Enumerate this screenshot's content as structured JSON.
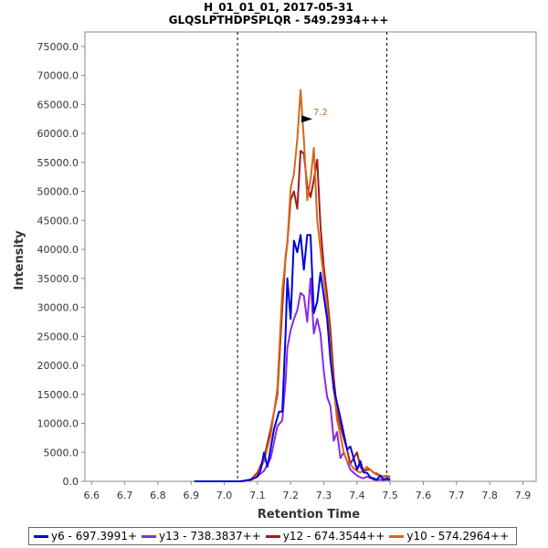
{
  "chart_data": {
    "type": "line",
    "title": "H_01_01_01, 2017-05-31",
    "subtitle": "GLQSLPTHDPSPLQR - 549.2934+++",
    "xlabel": "Retention Time",
    "ylabel": "Intensity",
    "xlim": [
      6.58,
      7.94
    ],
    "ylim": [
      0,
      77500
    ],
    "x_ticks": [
      "6.6",
      "6.7",
      "6.8",
      "6.9",
      "7.0",
      "7.1",
      "7.2",
      "7.3",
      "7.4",
      "7.5",
      "7.6",
      "7.7",
      "7.8",
      "7.9"
    ],
    "y_ticks": [
      "0.0",
      "5000.0",
      "10000.0",
      "15000.0",
      "20000.0",
      "25000.0",
      "30000.0",
      "35000.0",
      "40000.0",
      "45000.0",
      "50000.0",
      "55000.0",
      "60000.0",
      "65000.0",
      "70000.0",
      "75000.0"
    ],
    "integration_boundaries": [
      7.04,
      7.49
    ],
    "peak_annotation": {
      "label": "7.2",
      "x": 7.26,
      "y": 62500
    },
    "legend_position": "bottom",
    "series": [
      {
        "name": "y6 - 697.3991+",
        "color": "#0000e0",
        "x": [
          6.91,
          6.95,
          7.0,
          7.05,
          7.08,
          7.1,
          7.11,
          7.12,
          7.13,
          7.15,
          7.165,
          7.175,
          7.185,
          7.19,
          7.2,
          7.21,
          7.22,
          7.23,
          7.24,
          7.25,
          7.26,
          7.27,
          7.28,
          7.29,
          7.3,
          7.31,
          7.32,
          7.33,
          7.35,
          7.37,
          7.38,
          7.39,
          7.4,
          7.41,
          7.42,
          7.43,
          7.44,
          7.45,
          7.46,
          7.47,
          7.48,
          7.49,
          7.5
        ],
        "y": [
          0,
          0,
          0,
          0,
          300,
          800,
          2000,
          5000,
          2500,
          9000,
          12000,
          12000,
          26000,
          35000,
          28000,
          41500,
          39500,
          42500,
          36500,
          42500,
          42500,
          29000,
          31000,
          36000,
          32000,
          28000,
          21000,
          16000,
          11000,
          5500,
          6000,
          4000,
          2000,
          3500,
          1500,
          1500,
          700,
          500,
          300,
          1000,
          300,
          500,
          300
        ]
      },
      {
        "name": "y13 - 738.3837++",
        "color": "#8a2be2",
        "x": [
          6.91,
          6.95,
          7.0,
          7.05,
          7.08,
          7.1,
          7.12,
          7.14,
          7.16,
          7.175,
          7.185,
          7.19,
          7.2,
          7.21,
          7.22,
          7.23,
          7.24,
          7.25,
          7.26,
          7.27,
          7.28,
          7.29,
          7.3,
          7.31,
          7.32,
          7.33,
          7.34,
          7.35,
          7.36,
          7.37,
          7.38,
          7.39,
          7.4,
          7.41,
          7.42,
          7.43,
          7.44,
          7.45,
          7.46,
          7.47,
          7.48,
          7.49,
          7.5
        ],
        "y": [
          0,
          0,
          0,
          0,
          200,
          900,
          1800,
          4000,
          9500,
          10500,
          17500,
          23000,
          26000,
          28000,
          29500,
          32500,
          32000,
          27500,
          35000,
          25500,
          28000,
          25500,
          19000,
          14500,
          13000,
          7000,
          8500,
          4000,
          5000,
          3500,
          2000,
          1500,
          1000,
          700,
          500,
          800,
          600,
          300,
          200,
          300,
          200,
          300,
          200
        ]
      }
    ]
  },
  "legend": {
    "items": [
      {
        "label": "y6 - 697.3991+",
        "color": "#0000e0"
      },
      {
        "label": "y13 - 738.3837++",
        "color": "#8a2be2"
      },
      {
        "label": "y12 - 674.3544++",
        "color": "#a01c1c"
      },
      {
        "label": "y10 - 574.2964++",
        "color": "#d2691e"
      }
    ]
  }
}
